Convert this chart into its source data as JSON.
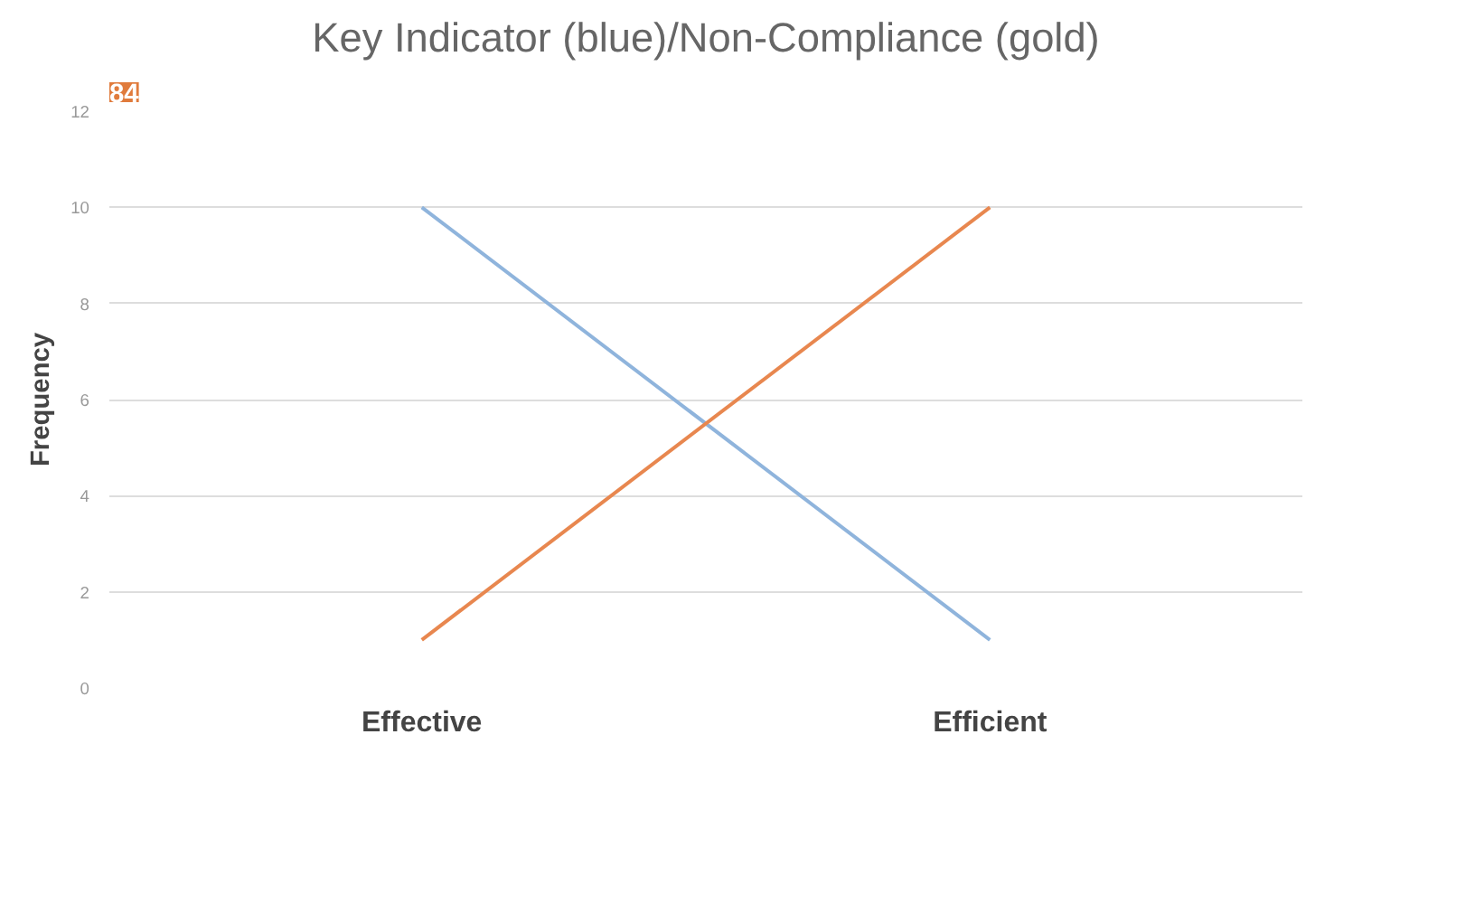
{
  "chart_data": {
    "type": "line",
    "title": "Key Indicator (blue)/Non-Compliance (gold)",
    "ylabel": "Frequency",
    "categories": [
      "Effective",
      "Efficient"
    ],
    "series": [
      {
        "color": "#8fb4dc",
        "values": [
          10,
          1
        ]
      },
      {
        "color": "#e8874f",
        "values": [
          1,
          10
        ]
      }
    ],
    "ylim": [
      0,
      12
    ],
    "yticks": [
      0,
      2,
      4,
      6,
      8,
      10,
      12
    ],
    "grid": "y",
    "annotations": [
      "84"
    ]
  }
}
